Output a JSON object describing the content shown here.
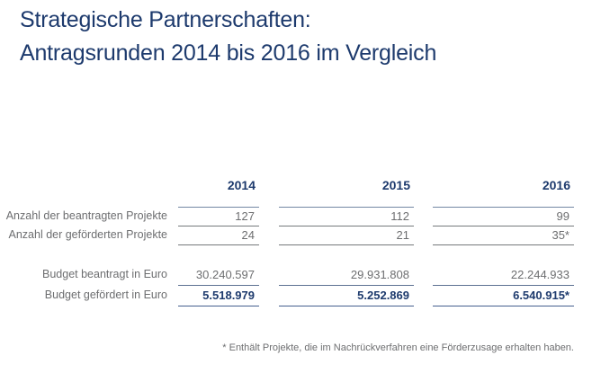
{
  "title": {
    "line1": "Strategische Partnerschaften:",
    "line2": "Antragsrunden 2014 bis 2016 im Vergleich"
  },
  "chart_data": {
    "type": "table",
    "title": "Strategische Partnerschaften: Antragsrunden 2014 bis 2016 im Vergleich",
    "columns": [
      "2014",
      "2015",
      "2016"
    ],
    "rows": [
      {
        "label": "Anzahl der beantragten Projekte",
        "values": [
          "127",
          "112",
          "99"
        ]
      },
      {
        "label": "Anzahl der geförderten Projekte",
        "values": [
          "24",
          "21",
          "35*"
        ]
      },
      {
        "label": "Budget beantragt in Euro",
        "values": [
          "30.240.597",
          "29.931.808",
          "22.244.933"
        ]
      },
      {
        "label": "Budget gefördert in Euro",
        "values": [
          "5.518.979",
          "5.252.869",
          "6.540.915*"
        ],
        "emphasis": true
      }
    ]
  },
  "footnote": {
    "text": "* Enthält Projekte, die im Nachrückverfahren eine Förderzusage erhalten haben."
  },
  "colors": {
    "navy": "#1d3a6d",
    "gray_text": "#6d6e70",
    "rule_gray": "#76797c",
    "rule_navy": "#45608f",
    "background": "#ffffff"
  }
}
